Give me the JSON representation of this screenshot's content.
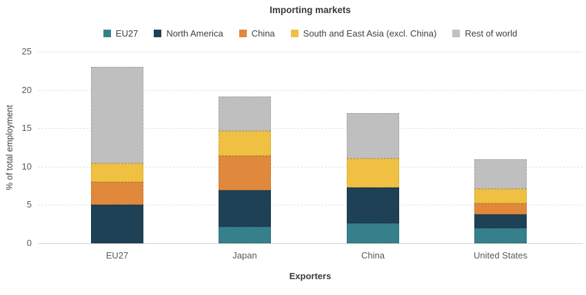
{
  "chart_data": {
    "type": "bar",
    "stacked": true,
    "title": "Importing markets",
    "xlabel": "Exporters",
    "ylabel": "% of total employment",
    "categories": [
      "EU27",
      "Japan",
      "China",
      "United States"
    ],
    "series": [
      {
        "name": "EU27",
        "color": "#35808A",
        "values": [
          0,
          2.2,
          2.6,
          2.0
        ]
      },
      {
        "name": "North America",
        "color": "#1E4156",
        "values": [
          5.0,
          4.7,
          4.7,
          1.8
        ]
      },
      {
        "name": "China",
        "color": "#E0883B",
        "values": [
          3.0,
          4.5,
          0,
          1.4
        ]
      },
      {
        "name": "South and East Asia (excl. China)",
        "color": "#EFC041",
        "values": [
          2.4,
          3.3,
          3.8,
          1.9
        ]
      },
      {
        "name": "Rest of world",
        "color": "#BFBFBF",
        "values": [
          12.6,
          4.5,
          5.9,
          3.9
        ]
      }
    ],
    "totals": [
      23.0,
      19.2,
      17.0,
      11.0
    ],
    "ylim": [
      0,
      25
    ],
    "yticks": [
      0,
      5,
      10,
      15,
      20,
      25
    ],
    "grid": "horizontal-dotted",
    "legend_position": "top-center",
    "colors": {
      "grid_dashed": "#e3e3e3",
      "axis_baseline": "#d4d4d4",
      "tick_text": "#595959",
      "title_text": "#3a3a3a"
    }
  }
}
